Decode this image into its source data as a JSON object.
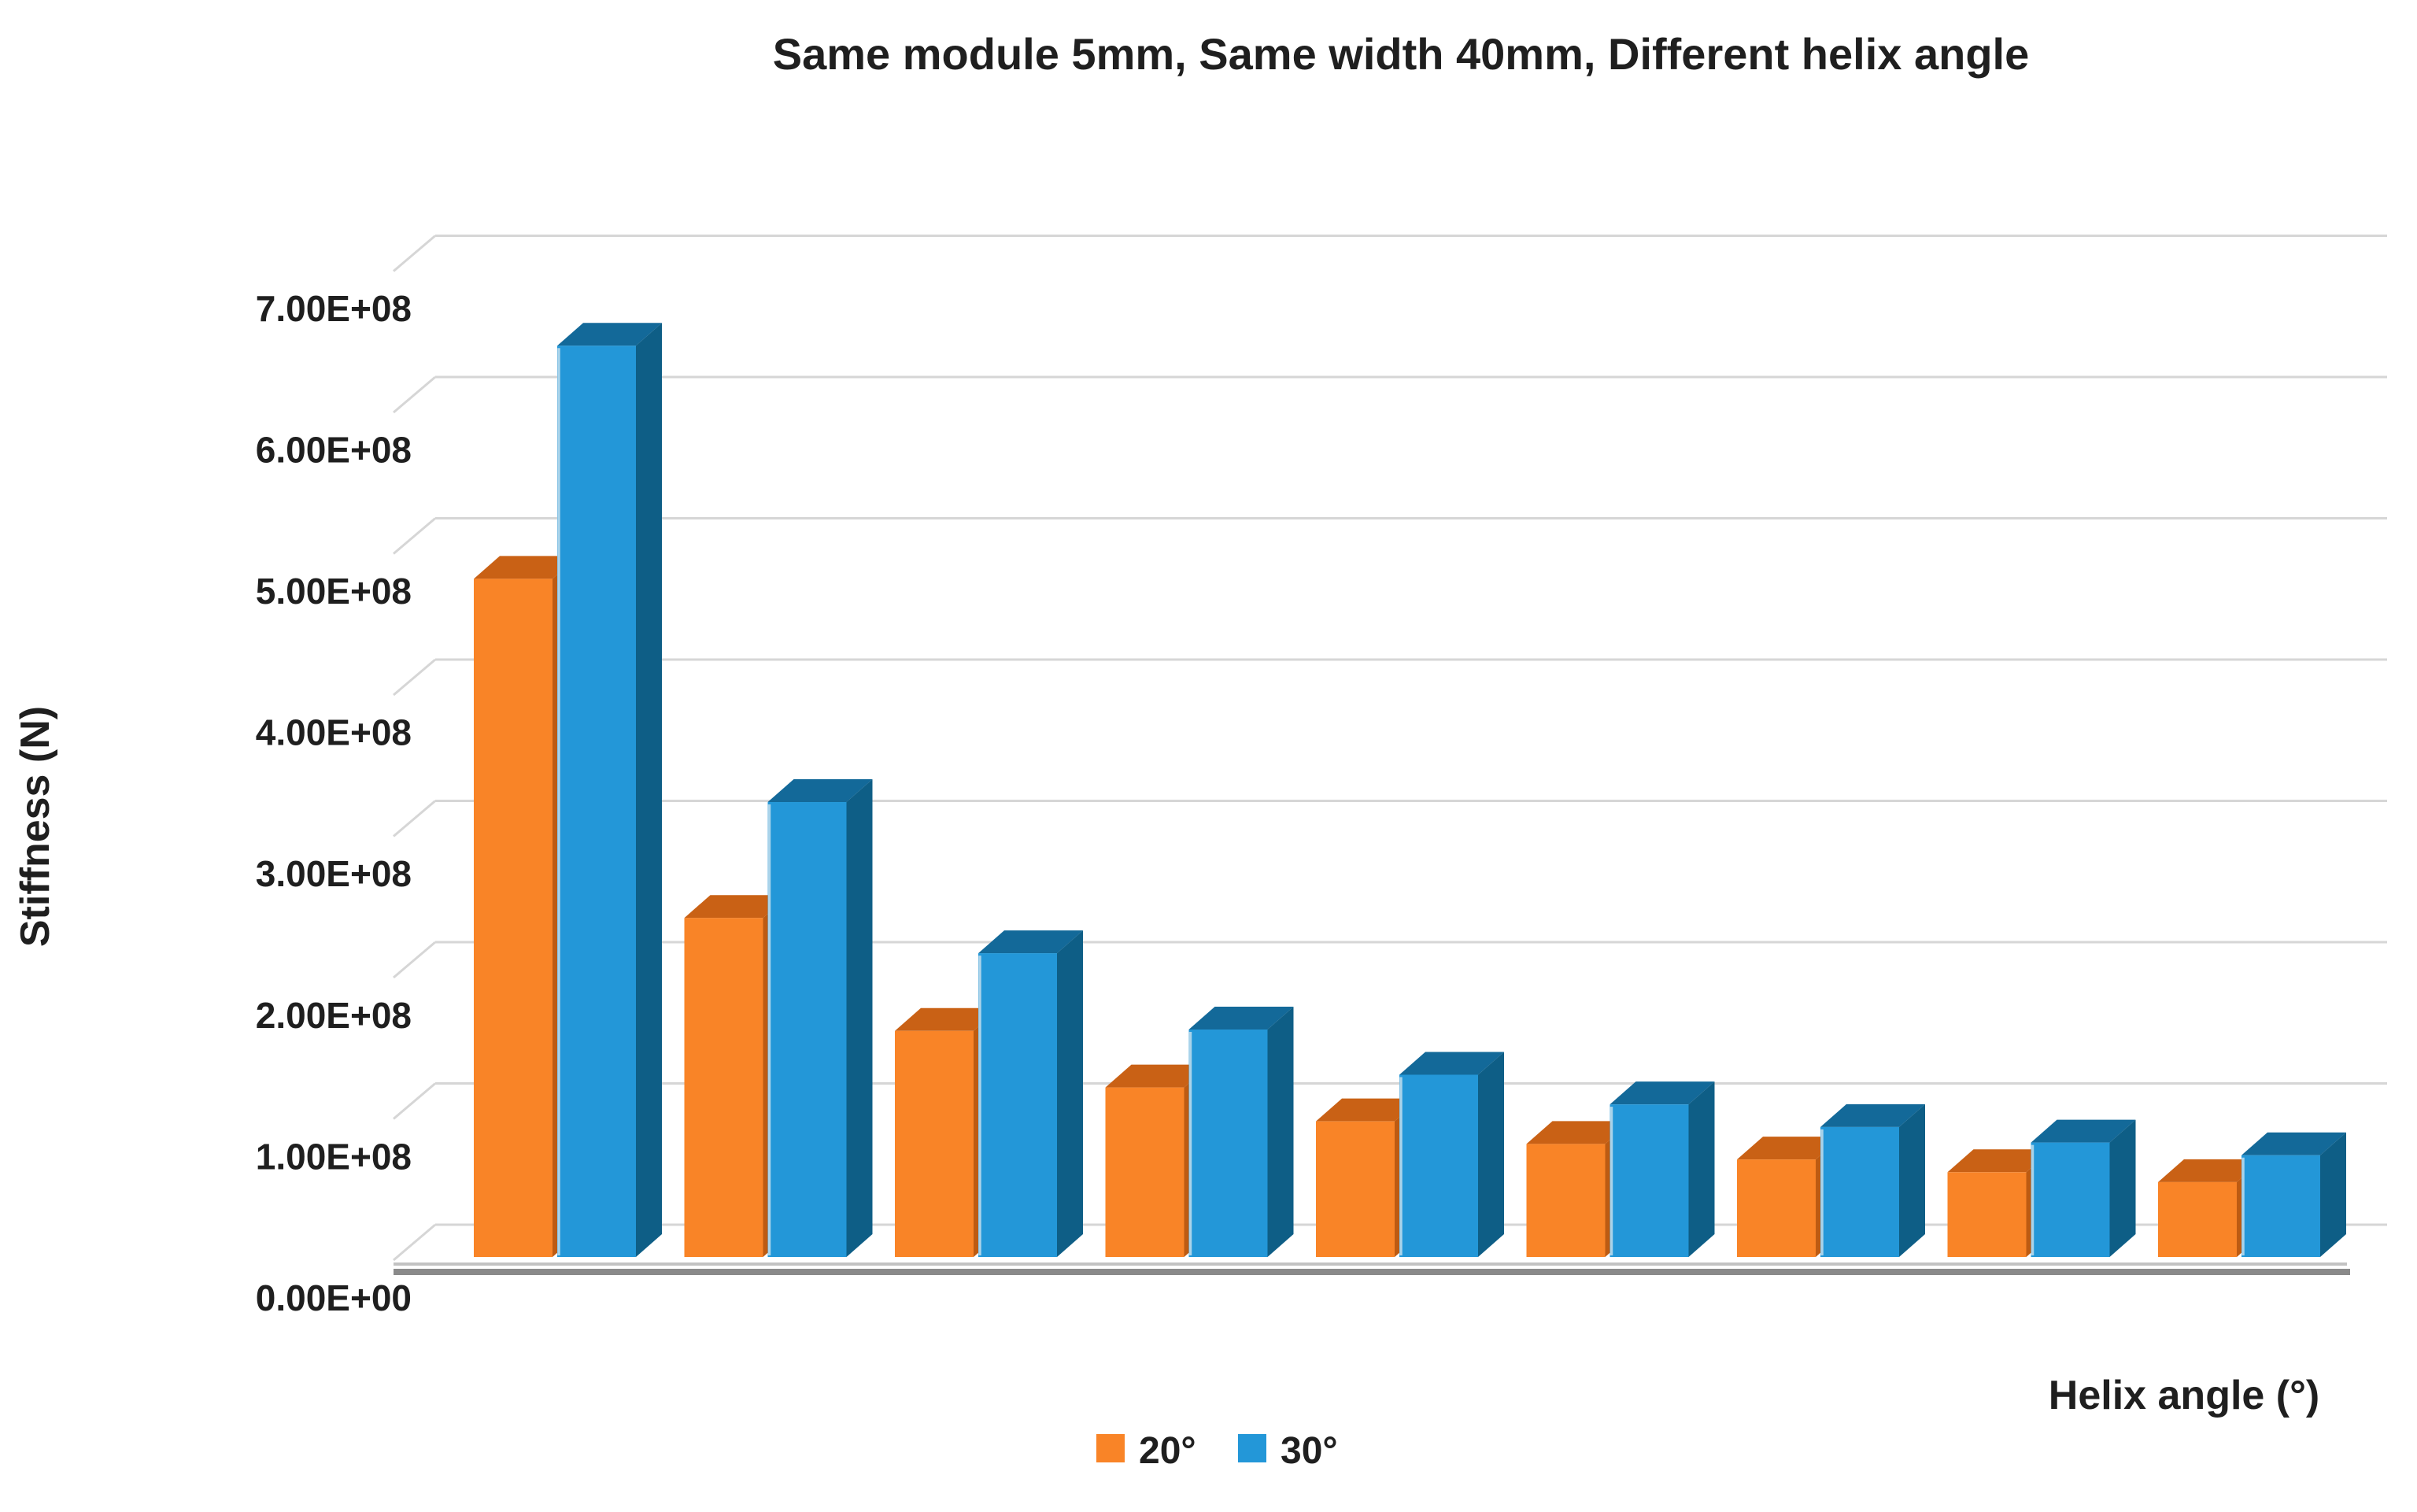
{
  "title": "Same module 5mm, Same width 40mm, Different helix angle",
  "y_axis": {
    "label": "Stiffness (N)",
    "tick_labels": [
      "0.00E+00",
      "1.00E+08",
      "2.00E+08",
      "3.00E+08",
      "4.00E+08",
      "5.00E+08",
      "6.00E+08",
      "7.00E+08"
    ]
  },
  "x_axis": {
    "label": "Helix angle (°)"
  },
  "legend": {
    "items": [
      {
        "label": "20°",
        "color": "#F98427"
      },
      {
        "label": "30°",
        "color": "#2397D8"
      }
    ]
  },
  "colors": {
    "orange_front": "#F98427",
    "orange_top": "#C96115",
    "orange_side": "#BD5B12",
    "blue_front": "#2397D8",
    "blue_top": "#136999",
    "blue_side": "#0E5E86",
    "blue_edge_highlight": "#A9D3EA",
    "gridline": "#D6D6D6",
    "floor_edge_light": "#C2C2C2",
    "floor_edge_dark": "#8A8A8A"
  },
  "chart_data": {
    "type": "bar",
    "style": "3d-clustered-column",
    "title": "Same module 5mm, Same width 40mm, Different helix angle",
    "xlabel": "Helix angle (°)",
    "ylabel": "Stiffness (N)",
    "ylim": [
      0,
      700000000
    ],
    "ytick_step": 100000000,
    "grid": true,
    "legend_position": "bottom",
    "x_tick_labels_visible": false,
    "categories": [
      "",
      "",
      "",
      "",
      "",
      "",
      "",
      "",
      ""
    ],
    "series": [
      {
        "name": "20°",
        "color": "#F98427",
        "values": [
          480000000,
          240000000,
          160000000,
          120000000,
          96000000,
          80000000,
          69000000,
          60000000,
          53000000
        ]
      },
      {
        "name": "30°",
        "color": "#2397D8",
        "values": [
          645000000,
          322000000,
          215000000,
          161000000,
          129000000,
          108000000,
          92000000,
          81000000,
          72000000
        ]
      }
    ]
  }
}
